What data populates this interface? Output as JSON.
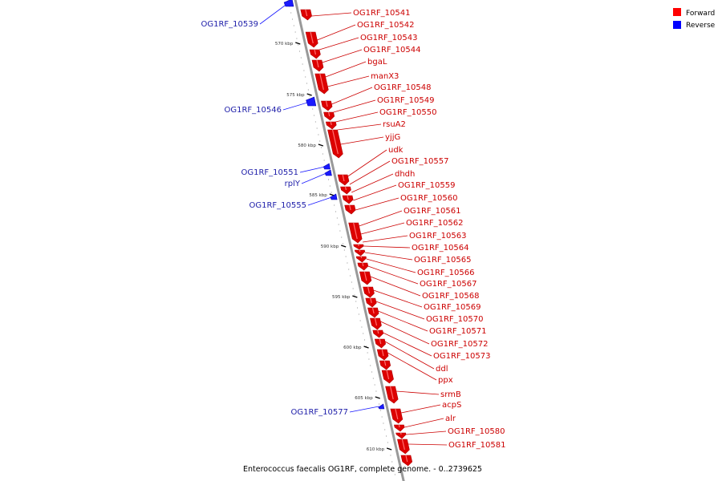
{
  "caption": "Enterococcus faecalis OG1RF, complete genome. - 0..2739625",
  "legend": {
    "forward_label": "Forward",
    "reverse_label": "Reverse",
    "forward_color": "#ff0000",
    "reverse_color": "#0000ff"
  },
  "colors": {
    "forward": "#dd0000",
    "forward_label": "#cc0000",
    "reverse": "#1a1aff",
    "reverse_label": "#2020aa",
    "backbone": "#999999"
  },
  "ticks": [
    "570 kbp",
    "575 kbp",
    "580 kbp",
    "585 kbp",
    "590 kbp",
    "595 kbp",
    "600 kbp",
    "605 kbp",
    "610 kbp"
  ],
  "forward_genes": [
    "OG1RF_10541",
    "OG1RF_10542",
    "OG1RF_10543",
    "OG1RF_10544",
    "bgaL",
    "manX3",
    "OG1RF_10548",
    "OG1RF_10549",
    "OG1RF_10550",
    "rsuA2",
    "yjjG",
    "udk",
    "OG1RF_10557",
    "dhdh",
    "OG1RF_10559",
    "OG1RF_10560",
    "OG1RF_10561",
    "OG1RF_10562",
    "OG1RF_10563",
    "OG1RF_10564",
    "OG1RF_10565",
    "OG1RF_10566",
    "OG1RF_10567",
    "OG1RF_10568",
    "OG1RF_10569",
    "OG1RF_10570",
    "OG1RF_10571",
    "OG1RF_10572",
    "OG1RF_10573",
    "ddl",
    "ppx",
    "srmB",
    "acpS",
    "alr",
    "OG1RF_10580",
    "OG1RF_10581"
  ],
  "reverse_genes": [
    "OG1RF_10539",
    "OG1RF_10546",
    "OG1RF_10551",
    "rplY",
    "OG1RF_10555",
    "OG1RF_10577"
  ]
}
